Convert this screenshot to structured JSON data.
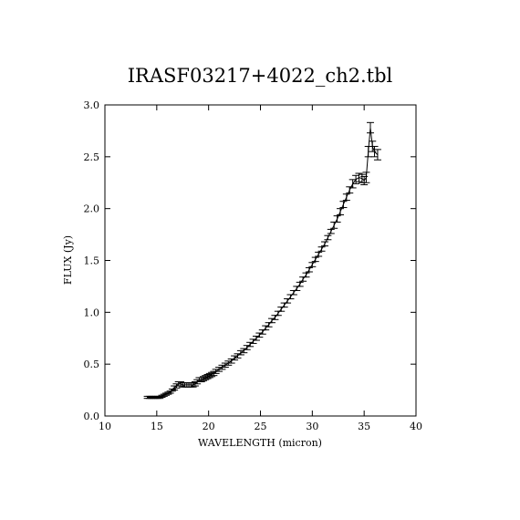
{
  "chart_data": {
    "type": "line",
    "title": "IRASF03217+4022_ch2.tbl",
    "xlabel": "WAVELENGTH (micron)",
    "ylabel": "FLUX (Jy)",
    "xlim": [
      10,
      40
    ],
    "ylim": [
      0.0,
      3.0
    ],
    "x_ticks": [
      "10",
      "15",
      "20",
      "25",
      "30",
      "35",
      "40"
    ],
    "y_ticks": [
      "0.0",
      "0.5",
      "1.0",
      "1.5",
      "2.0",
      "2.5",
      "3.0"
    ],
    "grid": false,
    "error_bars": true,
    "series": [
      {
        "x": [
          14.1,
          14.3,
          14.5,
          14.7,
          14.9,
          15.1,
          15.3,
          15.5,
          15.7,
          15.9,
          16.1,
          16.3,
          16.5,
          16.7,
          16.9,
          17.1,
          17.3,
          17.5,
          17.7,
          17.9,
          18.1,
          18.3,
          18.5,
          18.7,
          18.9,
          19.1,
          19.3,
          19.5,
          19.7,
          19.9,
          20.1,
          20.3,
          20.5,
          20.7,
          21.0,
          21.3,
          21.6,
          21.9,
          22.2,
          22.5,
          22.8,
          23.1,
          23.4,
          23.7,
          24.0,
          24.3,
          24.6,
          24.9,
          25.2,
          25.5,
          25.8,
          26.1,
          26.4,
          26.7,
          27.0,
          27.3,
          27.6,
          27.9,
          28.2,
          28.5,
          28.8,
          29.1,
          29.4,
          29.7,
          30.0,
          30.3,
          30.6,
          30.9,
          31.2,
          31.5,
          31.8,
          32.1,
          32.4,
          32.7,
          33.0,
          33.3,
          33.6,
          33.9,
          34.2,
          34.5,
          34.8,
          35.0,
          35.2,
          35.4,
          35.6,
          35.8,
          36.0,
          36.3
        ],
        "y": [
          0.18,
          0.18,
          0.18,
          0.18,
          0.18,
          0.18,
          0.18,
          0.19,
          0.2,
          0.21,
          0.22,
          0.23,
          0.25,
          0.27,
          0.29,
          0.31,
          0.31,
          0.3,
          0.3,
          0.3,
          0.3,
          0.3,
          0.3,
          0.31,
          0.33,
          0.35,
          0.35,
          0.36,
          0.37,
          0.38,
          0.39,
          0.4,
          0.41,
          0.43,
          0.45,
          0.47,
          0.49,
          0.51,
          0.53,
          0.56,
          0.58,
          0.61,
          0.63,
          0.66,
          0.69,
          0.72,
          0.75,
          0.78,
          0.81,
          0.85,
          0.88,
          0.92,
          0.95,
          0.99,
          1.03,
          1.07,
          1.11,
          1.15,
          1.19,
          1.23,
          1.27,
          1.32,
          1.36,
          1.41,
          1.46,
          1.51,
          1.56,
          1.61,
          1.66,
          1.72,
          1.78,
          1.84,
          1.9,
          1.97,
          2.04,
          2.11,
          2.18,
          2.24,
          2.28,
          2.3,
          2.29,
          2.27,
          2.3,
          2.55,
          2.78,
          2.6,
          2.55,
          2.52
        ],
        "err": [
          0.01,
          0.01,
          0.01,
          0.01,
          0.01,
          0.01,
          0.01,
          0.01,
          0.01,
          0.01,
          0.01,
          0.01,
          0.01,
          0.02,
          0.02,
          0.02,
          0.02,
          0.02,
          0.02,
          0.02,
          0.02,
          0.02,
          0.02,
          0.02,
          0.02,
          0.02,
          0.02,
          0.02,
          0.02,
          0.02,
          0.02,
          0.02,
          0.02,
          0.02,
          0.02,
          0.02,
          0.02,
          0.02,
          0.02,
          0.02,
          0.02,
          0.02,
          0.02,
          0.02,
          0.02,
          0.02,
          0.02,
          0.02,
          0.02,
          0.02,
          0.02,
          0.02,
          0.02,
          0.02,
          0.02,
          0.02,
          0.02,
          0.02,
          0.02,
          0.02,
          0.02,
          0.02,
          0.02,
          0.02,
          0.02,
          0.02,
          0.02,
          0.02,
          0.02,
          0.02,
          0.02,
          0.03,
          0.03,
          0.03,
          0.03,
          0.03,
          0.03,
          0.04,
          0.04,
          0.04,
          0.04,
          0.04,
          0.05,
          0.05,
          0.05,
          0.05,
          0.05,
          0.05
        ]
      }
    ]
  }
}
